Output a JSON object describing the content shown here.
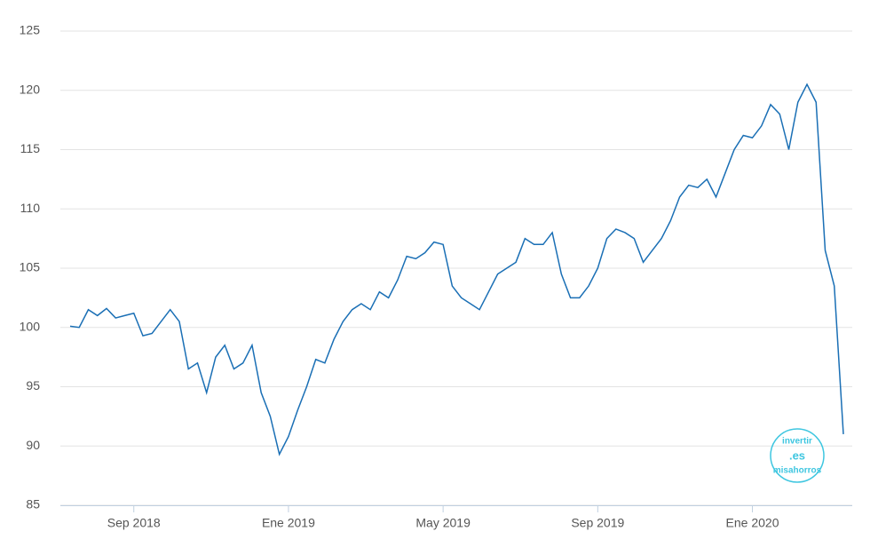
{
  "chart_data": {
    "type": "line",
    "categories": [
      null,
      null,
      null,
      null,
      null,
      null,
      null,
      "Sep 2018",
      null,
      null,
      null,
      null,
      null,
      null,
      null,
      null,
      null,
      null,
      null,
      null,
      null,
      null,
      null,
      null,
      "Ene 2019",
      null,
      null,
      null,
      null,
      null,
      null,
      null,
      null,
      null,
      null,
      null,
      null,
      null,
      null,
      null,
      null,
      "May 2019",
      null,
      null,
      null,
      null,
      null,
      null,
      null,
      null,
      null,
      null,
      null,
      null,
      null,
      null,
      null,
      null,
      "Sep 2019",
      null,
      null,
      null,
      null,
      null,
      null,
      null,
      null,
      null,
      null,
      null,
      null,
      null,
      null,
      null,
      null,
      "Ene 2020",
      null,
      null,
      null,
      null,
      null,
      null,
      null,
      null,
      null,
      null
    ],
    "values": [
      100.1,
      100.0,
      101.5,
      101.0,
      101.6,
      100.8,
      101.0,
      101.2,
      99.3,
      99.5,
      100.5,
      101.5,
      100.5,
      96.5,
      97.0,
      94.5,
      97.5,
      98.5,
      96.5,
      97.0,
      98.5,
      94.5,
      92.5,
      89.3,
      90.8,
      93.0,
      95.0,
      97.3,
      97.0,
      99.0,
      100.5,
      101.5,
      102.0,
      101.5,
      103.0,
      102.5,
      104.0,
      106.0,
      105.8,
      106.3,
      107.2,
      107.0,
      103.5,
      102.5,
      102.0,
      101.5,
      103.0,
      104.5,
      105.0,
      105.5,
      107.5,
      107.0,
      107.0,
      108.0,
      104.5,
      102.5,
      102.5,
      103.5,
      105.0,
      107.5,
      108.3,
      108.0,
      107.5,
      105.5,
      106.5,
      107.5,
      109.0,
      111.0,
      112.0,
      111.8,
      112.5,
      111.0,
      113.0,
      115.0,
      116.2,
      116.0,
      117.0,
      118.8,
      118.0,
      115.0,
      119.0,
      120.5,
      119.0,
      106.5,
      103.5,
      91.0
    ],
    "color": "#1a6fb5",
    "ylim": [
      85,
      125
    ],
    "yticks": [
      85,
      90,
      95,
      100,
      105,
      110,
      115,
      120,
      125
    ],
    "grid": true,
    "watermark": {
      "top": "invertir",
      "middle": ".es",
      "bottom": "misahorros"
    }
  }
}
